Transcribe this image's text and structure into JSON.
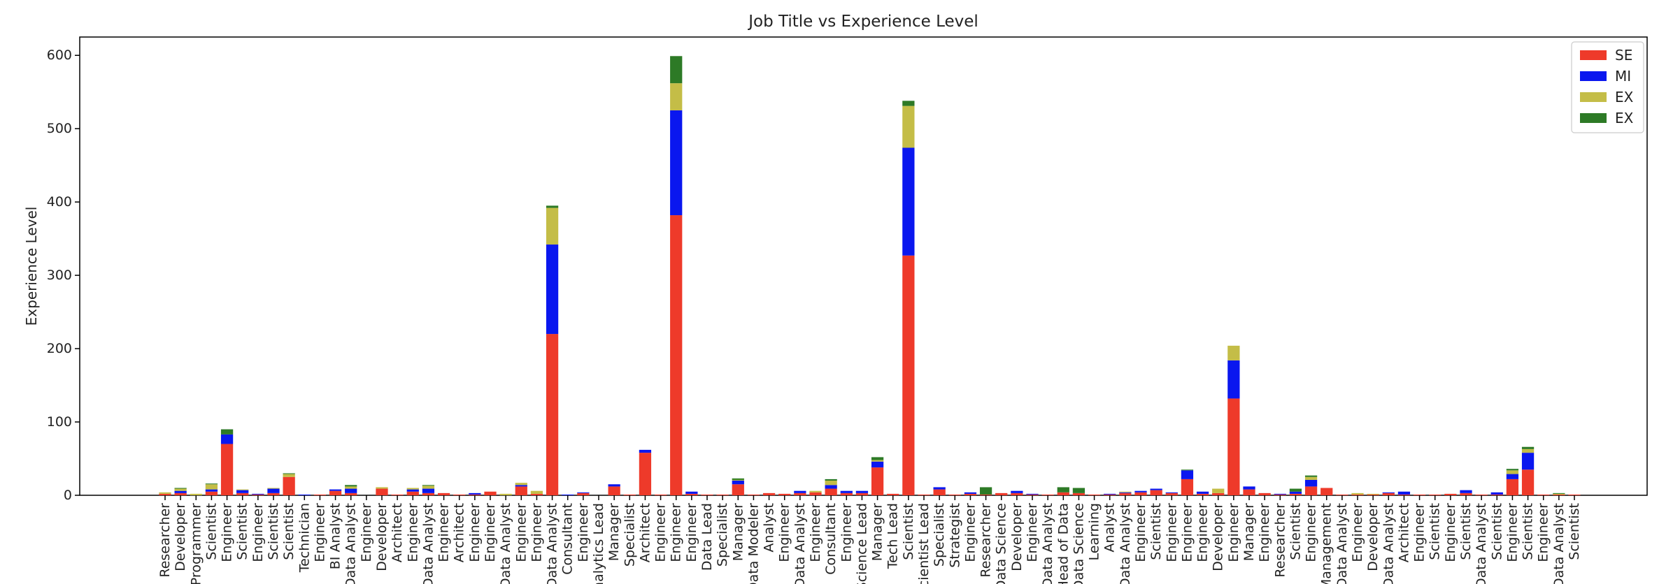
{
  "chart_data": {
    "type": "bar",
    "stacked": true,
    "title": "Job Title vs Experience Level",
    "xlabel": "",
    "ylabel": "Experience Level",
    "ylim": [
      0,
      625
    ],
    "yticks": [
      0,
      100,
      200,
      300,
      400,
      500,
      600
    ],
    "grid": false,
    "legend_position": "top-right",
    "categories": [
      "Researcher",
      "Developer",
      "Programmer",
      "Scientist",
      "Engineer",
      "Scientist",
      "Engineer",
      "Scientist",
      "Scientist",
      "Technician",
      "Engineer",
      "BI Analyst",
      "Data Analyst",
      "Engineer",
      "Developer",
      "Architect",
      "Engineer",
      "Data Analyst",
      "Engineer",
      "Architect",
      "Engineer",
      "Engineer",
      "Data Analyst",
      "Engineer",
      "Engineer",
      "Data Analyst",
      "Consultant",
      "Engineer",
      "Analytics Lead",
      "Manager",
      "Specialist",
      "Architect",
      "Engineer",
      "Engineer",
      "Engineer",
      "Data Lead",
      "Specialist",
      "Manager",
      "Data Modeler",
      "Analyst",
      "Engineer",
      "Data Analyst",
      "Engineer",
      "Consultant",
      "Engineer",
      "Science Lead",
      "Manager",
      "Tech Lead",
      "Scientist",
      "Scientist Lead",
      "Specialist",
      "Strategist",
      "Engineer",
      "Researcher",
      "Data Science",
      "Developer",
      "Engineer",
      "Data Analyst",
      "Head of Data",
      "Data Science",
      "Learning",
      "Analyst",
      "Data Analyst",
      "Engineer",
      "Scientist",
      "Engineer",
      "Engineer",
      "Engineer",
      "Developer",
      "Engineer",
      "Manager",
      "Engineer",
      "Researcher",
      "Scientist",
      "Engineer",
      "Management",
      "Data Analyst",
      "Engineer",
      "Developer",
      "Data Analyst",
      "Architect",
      "Engineer",
      "Scientist",
      "Engineer",
      "Scientist",
      "Data Analyst",
      "Scientist",
      "Engineer",
      "Scientist",
      "Engineer",
      "Data Analyst",
      "Scientist"
    ],
    "series": [
      {
        "name": "SE",
        "color": "#ee3a2a",
        "values": [
          2,
          3,
          0,
          5,
          70,
          3,
          1,
          3,
          25,
          0,
          1,
          6,
          3,
          0,
          9,
          1,
          5,
          3,
          3,
          1,
          1,
          5,
          0,
          12,
          2,
          220,
          0,
          3,
          0,
          12,
          1,
          58,
          1,
          382,
          2,
          1,
          1,
          15,
          1,
          3,
          2,
          3,
          4,
          9,
          3,
          3,
          38,
          2,
          327,
          1,
          8,
          1,
          2,
          1,
          3,
          3,
          1,
          1,
          4,
          3,
          1,
          1,
          3,
          4,
          7,
          3,
          22,
          2,
          3,
          132,
          8,
          3,
          1,
          2,
          12,
          10,
          1,
          1,
          1,
          3,
          1,
          1,
          1,
          2,
          3,
          1,
          1,
          22,
          35,
          1,
          1,
          1
        ]
      },
      {
        "name": "MI",
        "color": "#0a17ef",
        "values": [
          0,
          3,
          0,
          3,
          13,
          4,
          1,
          6,
          0,
          1,
          0,
          2,
          6,
          0,
          0,
          0,
          3,
          6,
          0,
          0,
          2,
          0,
          0,
          2,
          0,
          122,
          1,
          1,
          0,
          3,
          0,
          4,
          0,
          143,
          3,
          0,
          0,
          5,
          0,
          0,
          0,
          3,
          0,
          5,
          3,
          3,
          8,
          0,
          147,
          0,
          3,
          0,
          2,
          0,
          0,
          3,
          1,
          0,
          0,
          0,
          0,
          1,
          1,
          2,
          2,
          1,
          12,
          3,
          0,
          52,
          4,
          0,
          1,
          3,
          9,
          0,
          0,
          0,
          0,
          1,
          4,
          0,
          0,
          0,
          4,
          0,
          3,
          7,
          23,
          0,
          0,
          0
        ]
      },
      {
        "name": "EX",
        "color": "#c4bd47",
        "values": [
          2,
          3,
          2,
          7,
          0,
          1,
          0,
          1,
          4,
          0,
          0,
          0,
          3,
          0,
          2,
          0,
          2,
          4,
          0,
          0,
          0,
          0,
          2,
          3,
          4,
          50,
          0,
          0,
          0,
          0,
          0,
          0,
          0,
          37,
          0,
          0,
          0,
          1,
          0,
          0,
          0,
          0,
          2,
          6,
          0,
          0,
          2,
          0,
          57,
          0,
          0,
          0,
          0,
          0,
          0,
          0,
          0,
          0,
          0,
          0,
          0,
          0,
          1,
          0,
          0,
          0,
          0,
          0,
          6,
          20,
          0,
          0,
          0,
          0,
          4,
          0,
          0,
          2,
          1,
          0,
          0,
          0,
          0,
          0,
          0,
          0,
          0,
          5,
          5,
          0,
          1,
          0
        ]
      },
      {
        "name": "EX",
        "color": "#2d7a26",
        "values": [
          0,
          1,
          0,
          1,
          7,
          0,
          0,
          0,
          1,
          0,
          0,
          0,
          2,
          0,
          0,
          0,
          0,
          1,
          0,
          0,
          0,
          0,
          0,
          0,
          0,
          3,
          0,
          0,
          0,
          0,
          0,
          0,
          0,
          37,
          0,
          0,
          0,
          2,
          0,
          0,
          0,
          0,
          0,
          2,
          0,
          0,
          4,
          0,
          7,
          0,
          0,
          0,
          0,
          10,
          0,
          0,
          0,
          0,
          7,
          7,
          0,
          0,
          0,
          0,
          0,
          0,
          1,
          0,
          0,
          0,
          0,
          0,
          0,
          4,
          2,
          0,
          0,
          0,
          0,
          0,
          0,
          0,
          0,
          0,
          0,
          0,
          0,
          2,
          3,
          0,
          1,
          0
        ]
      }
    ]
  }
}
